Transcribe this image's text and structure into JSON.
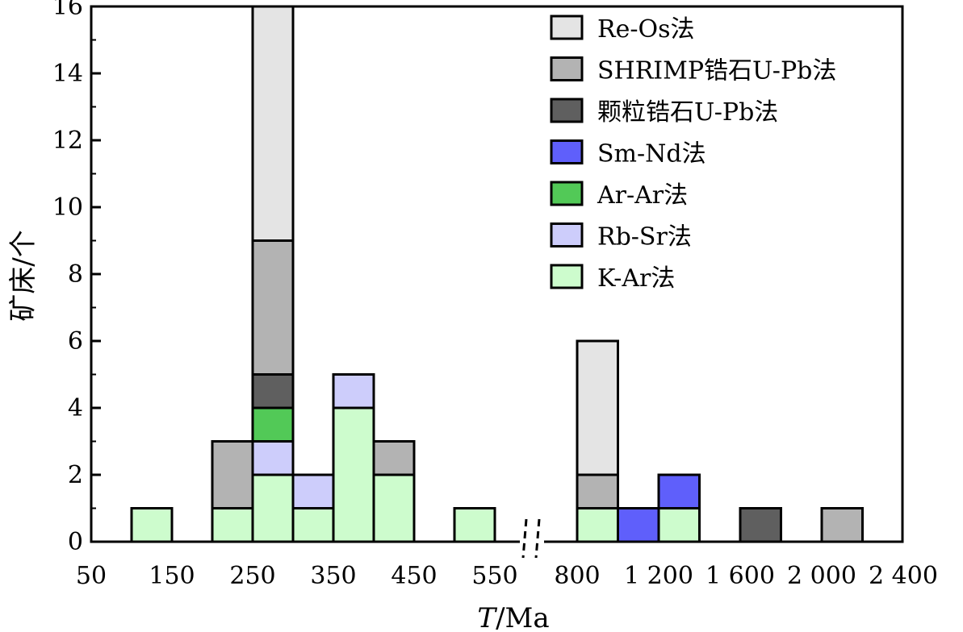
{
  "chart_data": {
    "type": "bar",
    "stacked": true,
    "xlabel": "T/Ma",
    "xlabel_italic": "T",
    "xlabel_unit": "/Ma",
    "ylabel": "矿床/个",
    "ylim": [
      0,
      16
    ],
    "y_ticks": [
      "0",
      "2",
      "4",
      "6",
      "8",
      "10",
      "12",
      "14",
      "16"
    ],
    "x_ticks_left": [
      "50",
      "150",
      "250",
      "350",
      "450",
      "550"
    ],
    "x_ticks_right": [
      "800",
      "1 200",
      "1 600",
      "2 000",
      "2 400"
    ],
    "axis_break": true,
    "grid": false,
    "legend_position": "top-right",
    "series": [
      {
        "name": "Re-Os法",
        "color": "#e4e4e4"
      },
      {
        "name": "SHRIMP锆石U-Pb法",
        "color": "#b3b3b3"
      },
      {
        "name": "颗粒锆石U-Pb法",
        "color": "#5f5f5f"
      },
      {
        "name": "Sm-Nd法",
        "color": "#5f5ffb"
      },
      {
        "name": "Ar-Ar法",
        "color": "#52c957"
      },
      {
        "name": "Rb-Sr法",
        "color": "#cdcdfb"
      },
      {
        "name": "K-Ar法",
        "color": "#cdfccd"
      }
    ],
    "bars": [
      {
        "bin": "100-150",
        "counts": {
          "K-Ar法": 1
        }
      },
      {
        "bin": "200-250",
        "counts": {
          "SHRIMP锆石U-Pb法": 2,
          "K-Ar法": 1
        }
      },
      {
        "bin": "250-300",
        "counts": {
          "Re-Os法": 7,
          "SHRIMP锆石U-Pb法": 4,
          "颗粒锆石U-Pb法": 1,
          "Ar-Ar法": 1,
          "Rb-Sr法": 1,
          "K-Ar法": 2
        }
      },
      {
        "bin": "300-350",
        "counts": {
          "Rb-Sr法": 1,
          "K-Ar法": 1
        }
      },
      {
        "bin": "350-400",
        "counts": {
          "Rb-Sr法": 1,
          "K-Ar法": 4
        }
      },
      {
        "bin": "400-450",
        "counts": {
          "SHRIMP锆石U-Pb法": 1,
          "K-Ar法": 2
        }
      },
      {
        "bin": "500-550",
        "counts": {
          "K-Ar法": 1
        }
      },
      {
        "bin": "800-1000",
        "counts": {
          "Re-Os法": 4,
          "SHRIMP锆石U-Pb法": 1,
          "K-Ar法": 1
        }
      },
      {
        "bin": "1000-1200",
        "counts": {
          "Sm-Nd法": 1
        }
      },
      {
        "bin": "1200-1400",
        "counts": {
          "Sm-Nd法": 1,
          "K-Ar法": 1
        }
      },
      {
        "bin": "1600-1800",
        "counts": {
          "颗粒锆石U-Pb法": 1
        }
      },
      {
        "bin": "2000-2200",
        "counts": {
          "SHRIMP锆石U-Pb法": 1
        }
      }
    ]
  }
}
